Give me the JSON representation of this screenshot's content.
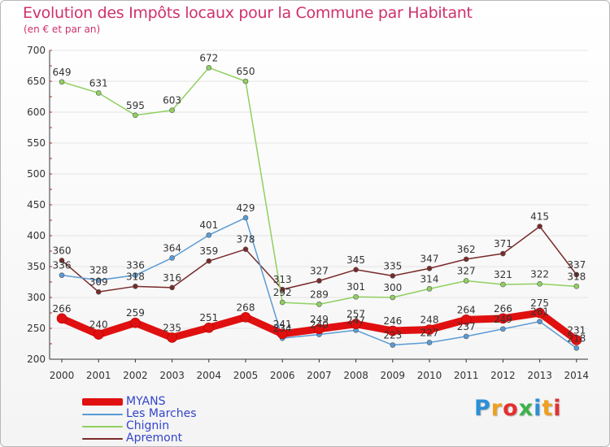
{
  "header": {
    "title": "Evolution des Impôts locaux pour la Commune par Habitant",
    "subtitle": "(en € et par an)"
  },
  "logo": {
    "text": "Proxiti",
    "colors": [
      "#2b8fd6",
      "#f0a020",
      "#e53030",
      "#3ab34a"
    ]
  },
  "colors": {
    "title": "#d0306c",
    "legend_text": "#3344cc",
    "axis": "#333333",
    "grid": "#e4e4e4"
  },
  "chart_data": {
    "type": "line",
    "title": "Evolution des Impôts locaux pour la Commune par Habitant",
    "subtitle": "(en € et par an)",
    "xlabel": "",
    "ylabel": "",
    "x": [
      "2000",
      "2001",
      "2002",
      "2003",
      "2004",
      "2005",
      "2006",
      "2007",
      "2008",
      "2009",
      "2010",
      "2011",
      "2012",
      "2013",
      "2014"
    ],
    "ylim": [
      200,
      700
    ],
    "yticks": [
      200,
      250,
      300,
      350,
      400,
      450,
      500,
      550,
      600,
      650,
      700
    ],
    "grid": true,
    "legend_position": "bottom-left",
    "series": [
      {
        "name": "MYANS",
        "color": "#e01010",
        "values": [
          266,
          240,
          259,
          235,
          251,
          268,
          241,
          249,
          257,
          246,
          248,
          264,
          266,
          275,
          231
        ],
        "labels": [
          "266",
          "240",
          "259",
          "235",
          "251",
          "268",
          "241",
          "249",
          "257",
          "246",
          "248",
          "264",
          "266",
          "275",
          "231"
        ]
      },
      {
        "name": "Les Marches",
        "color": "#5b9bd5",
        "values": [
          336,
          328,
          336,
          364,
          401,
          429,
          234,
          240,
          247,
          223,
          227,
          237,
          249,
          261,
          218
        ],
        "labels": [
          "336",
          "328",
          "336",
          "364",
          "401",
          "429",
          "234",
          "240",
          "247",
          "223",
          "227",
          "237",
          "249",
          "261",
          "218"
        ]
      },
      {
        "name": "Chignin",
        "color": "#90d060",
        "values": [
          649,
          631,
          595,
          603,
          672,
          650,
          292,
          289,
          301,
          300,
          314,
          327,
          321,
          322,
          318
        ],
        "labels": [
          "649",
          "631",
          "595",
          "603",
          "672",
          "650",
          "292",
          "289",
          "301",
          "300",
          "314",
          "327",
          "321",
          "322",
          "318"
        ]
      },
      {
        "name": "Apremont",
        "color": "#7a2a2a",
        "values": [
          360,
          309,
          318,
          316,
          359,
          378,
          313,
          327,
          345,
          335,
          347,
          362,
          371,
          415,
          337
        ],
        "labels": [
          "360",
          "309",
          "318",
          "316",
          "359",
          "378",
          "313",
          "327",
          "345",
          "335",
          "347",
          "362",
          "371",
          "415",
          "337"
        ]
      }
    ]
  }
}
